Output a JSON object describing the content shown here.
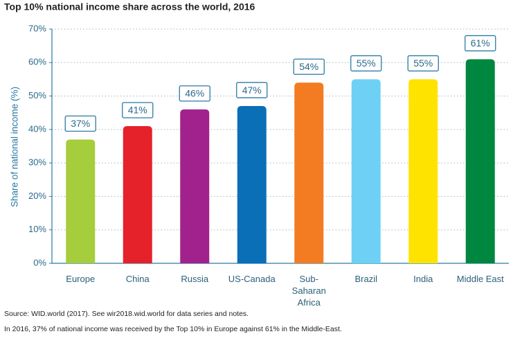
{
  "chart_data": {
    "type": "bar",
    "title": "Top 10% national income share across the world, 2016",
    "y_label": "Share of national income (%)",
    "categories": [
      "Europe",
      "China",
      "Russia",
      "US-Canada",
      "Sub-Saharan Africa",
      "Brazil",
      "India",
      "Middle East"
    ],
    "values": [
      37,
      41,
      46,
      47,
      54,
      55,
      55,
      61
    ],
    "value_labels": [
      "37%",
      "41%",
      "46%",
      "47%",
      "54%",
      "55%",
      "55%",
      "61%"
    ],
    "colors": [
      "#a6cd3b",
      "#e5222a",
      "#a1228d",
      "#0b6fb7",
      "#f37b21",
      "#6fd0f6",
      "#ffe300",
      "#00873f"
    ],
    "ylim": [
      0,
      70
    ],
    "yticks": [
      {
        "value": 0,
        "label": "0%"
      },
      {
        "value": 10,
        "label": "10%"
      },
      {
        "value": 20,
        "label": "20%"
      },
      {
        "value": 30,
        "label": "30%"
      },
      {
        "value": 40,
        "label": "40%"
      },
      {
        "value": 50,
        "label": "50%"
      },
      {
        "value": 60,
        "label": "60%"
      },
      {
        "value": 70,
        "label": "70%"
      }
    ],
    "grid": true,
    "source": "Source: WID.world (2017). See wir2018.wid.world for data series and notes.",
    "note": "In 2016, 37% of national income was received by the Top 10% in Europe against 61% in the Middle-East."
  }
}
